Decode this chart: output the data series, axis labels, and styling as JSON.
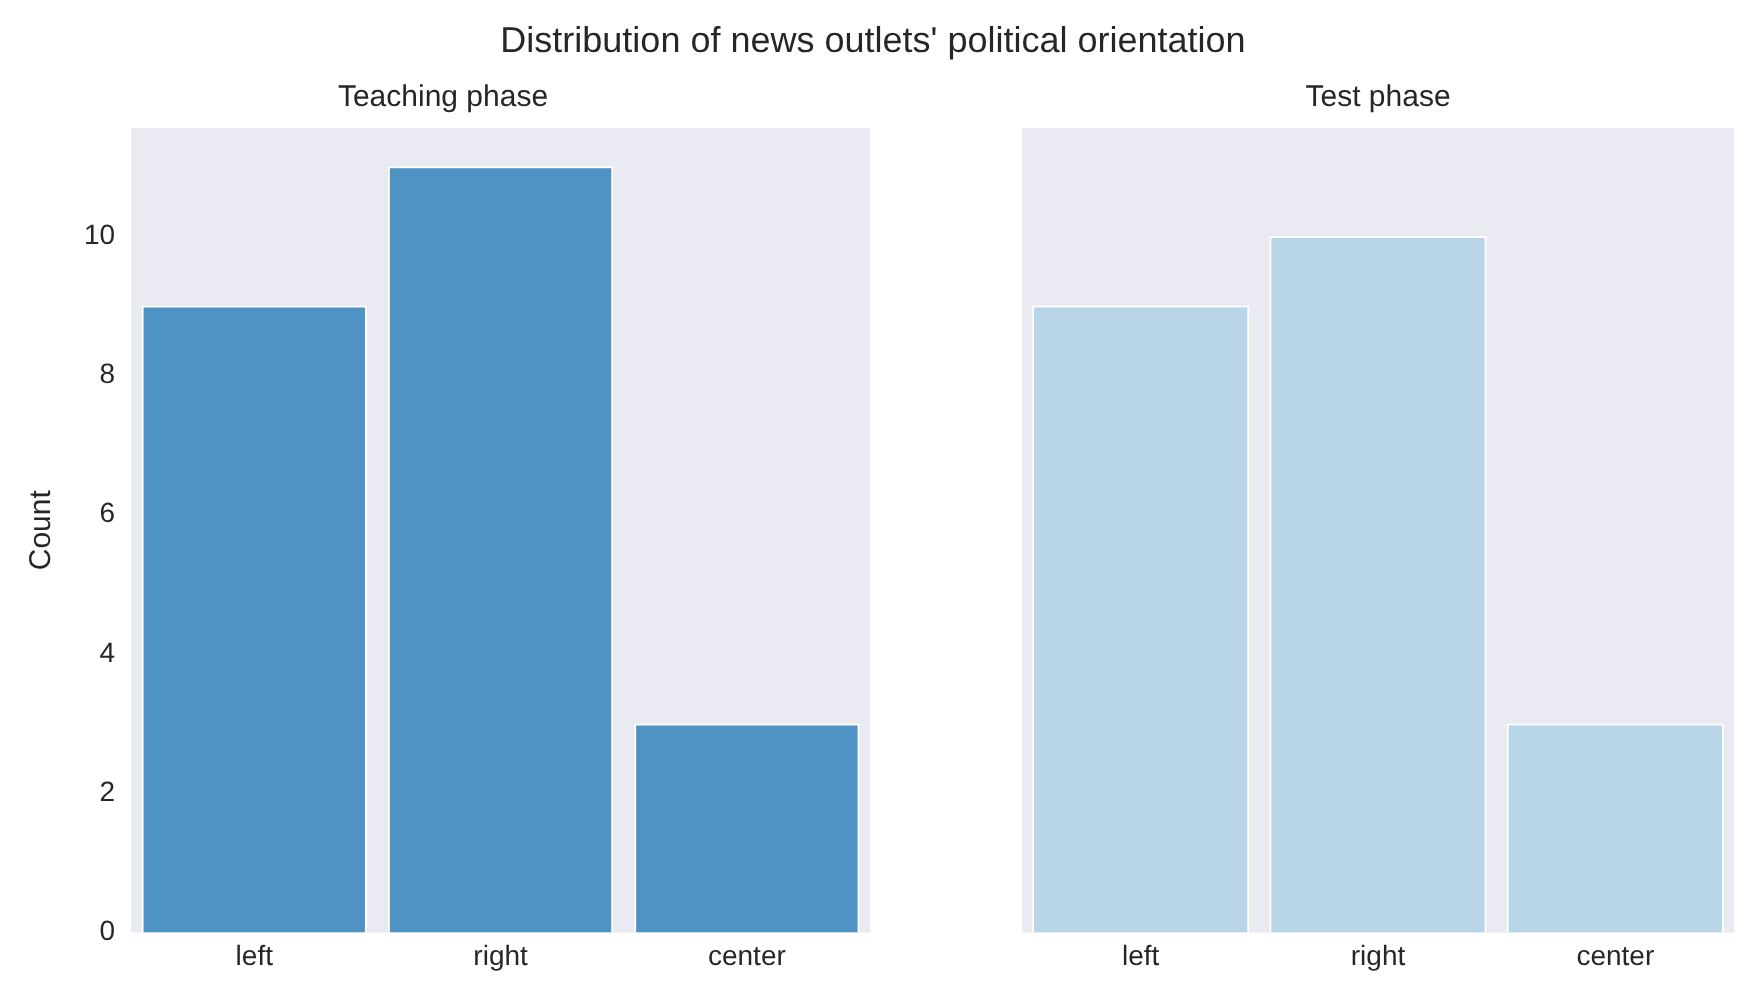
{
  "chart_data": [
    {
      "type": "bar",
      "title": "Teaching phase",
      "ylabel": "Count",
      "annotations": [
        "Distribution of news outlets' political orientation"
      ],
      "categories": [
        "left",
        "right",
        "center"
      ],
      "values": [
        9,
        11,
        3
      ],
      "color": "#4f93c4",
      "ylim": [
        0,
        11.55
      ],
      "yticks": [
        0,
        2,
        4,
        6,
        8,
        10
      ],
      "grid": false,
      "legend": false
    },
    {
      "type": "bar",
      "title": "Test phase",
      "categories": [
        "left",
        "right",
        "center"
      ],
      "values": [
        9,
        10,
        3
      ],
      "color": "#b8d6e8",
      "ylim": [
        0,
        11.55
      ],
      "yticks": [
        0,
        2,
        4,
        6,
        8,
        10
      ],
      "grid": false,
      "legend": false,
      "tick_labels": "x"
    }
  ]
}
